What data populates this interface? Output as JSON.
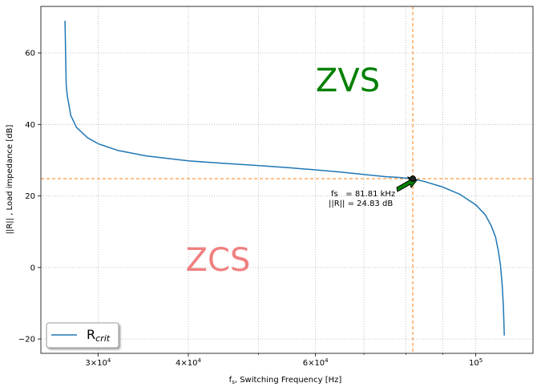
{
  "chart_data": {
    "type": "line",
    "xscale": "log",
    "xlabel_main": "f",
    "xlabel_sub": "s",
    "xlabel_rest": ", Switching Frequency [Hz]",
    "ylabel": "||R|| , Load impedance [dB]",
    "xlim": [
      25000,
      120000
    ],
    "ylim": [
      -24,
      73
    ],
    "grid": true,
    "yticks": [
      -20,
      0,
      20,
      40,
      60
    ],
    "xticks": [
      {
        "value": 30000,
        "mantissa": "3×10",
        "exp": "4"
      },
      {
        "value": 40000,
        "mantissa": "4×10",
        "exp": "4"
      },
      {
        "value": 60000,
        "mantissa": "6×10",
        "exp": "4"
      },
      {
        "value": 100000,
        "mantissa": "10",
        "exp": "5"
      }
    ],
    "minor_xticks": [
      50000,
      70000,
      80000,
      90000
    ],
    "series": [
      {
        "name": "R",
        "name_sub": "crit",
        "color": "#1f77b4",
        "x": [
          27000,
          27100,
          27200,
          27500,
          28000,
          29000,
          30000,
          32000,
          35000,
          40000,
          45000,
          50000,
          55000,
          60000,
          65000,
          70000,
          75000,
          78000,
          81810,
          85000,
          90000,
          95000,
          100000,
          103000,
          105000,
          106500,
          107500,
          108200,
          108800,
          109200,
          109500
        ],
        "y": [
          69,
          51,
          48,
          42.5,
          39.2,
          36.3,
          34.6,
          32.7,
          31.2,
          29.8,
          29.1,
          28.5,
          27.9,
          27.3,
          26.7,
          26.0,
          25.4,
          25.2,
          24.83,
          24.0,
          22.5,
          20.5,
          17.5,
          14.8,
          11.8,
          8.5,
          4.5,
          0.5,
          -5,
          -11,
          -19
        ]
      }
    ],
    "reference_lines": {
      "color": "#ff7f0e",
      "vertical_x": 81810,
      "horizontal_y": 24.83
    },
    "marker": {
      "x": 81810,
      "y": 24.83
    },
    "annotation": {
      "line1": "fs   = 81.81 kHz",
      "line2": "||R|| = 24.83 dB",
      "arrow_color": "#008000"
    },
    "regions": [
      {
        "text": "ZVS",
        "color": "#008000"
      },
      {
        "text": "ZCS",
        "color": "#f08080"
      }
    ],
    "legend_position": "bottom-left"
  }
}
